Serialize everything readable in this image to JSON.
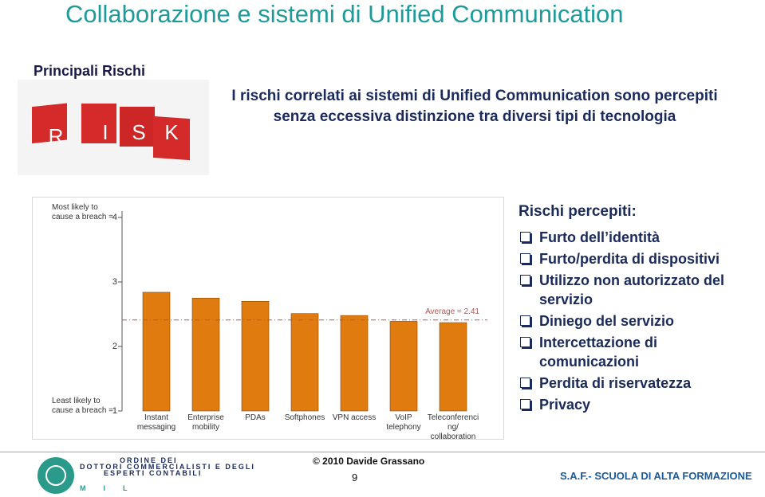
{
  "title": "Collaborazione e sistemi di Unified Communication",
  "section": "Principali Rischi",
  "risk_letters": [
    "R",
    "I",
    "S",
    "K"
  ],
  "intro": "I rischi correlati ai sistemi di Unified Communication sono percepiti senza eccessiva distinzione tra diversi tipi di tecnologia",
  "chart": {
    "type": "bar",
    "categories": [
      "Instant messaging",
      "Enterprise mobility",
      "PDAs",
      "Softphones",
      "VPN access",
      "VoIP telephony",
      "Teleconferencing/ collaboration"
    ],
    "values": [
      2.84,
      2.75,
      2.7,
      2.51,
      2.48,
      2.39,
      2.37
    ],
    "color": "#e07b10",
    "ylim": [
      1,
      4
    ],
    "yticks": [
      1,
      2,
      3,
      4
    ],
    "top_annotation": "Most likely to cause a breach =",
    "bottom_annotation": "Least likely to cause a breach =",
    "average": {
      "value": 2.41,
      "label": "Average = 2.41"
    }
  },
  "risk_list": {
    "heading": "Rischi percepiti:",
    "items": [
      "Furto dell’identità",
      "Furto/perdita di dispositivi",
      "Utilizzo non autorizzato del servizio",
      "Diniego del servizio",
      "Intercettazione di comunicazioni",
      "Perdita di riservatezza",
      "Privacy"
    ]
  },
  "footer": {
    "org": [
      "ORDINE DEI",
      "DOTTORI COMMERCIALISTI E DEGLI",
      "ESPERTI CONTABILI"
    ],
    "acronym": "MIL",
    "copyright": "© 2010 Davide Grassano",
    "page": "9",
    "school": "S.A.F.- SCUOLA DI ALTA FORMAZIONE"
  }
}
